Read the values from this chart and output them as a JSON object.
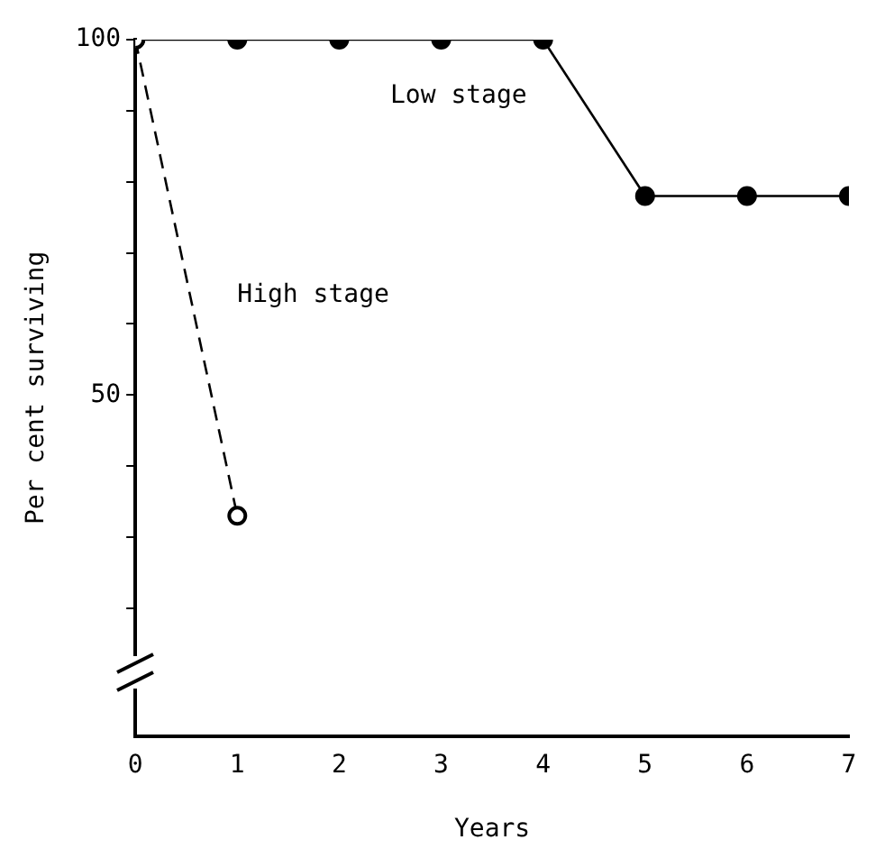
{
  "chart_data": {
    "type": "line",
    "xlabel": "Years",
    "ylabel": "Per cent surviving",
    "xlim": [
      0,
      7
    ],
    "xticks": [
      0,
      1,
      2,
      3,
      4,
      5,
      6,
      7
    ],
    "ylim": [
      2,
      100
    ],
    "yticks": [
      {
        "value": 20,
        "label": null
      },
      {
        "value": 30,
        "label": null
      },
      {
        "value": 40,
        "label": null
      },
      50,
      {
        "value": 60,
        "label": null
      },
      {
        "value": 70,
        "label": null
      },
      {
        "value": 80,
        "label": null
      },
      {
        "value": 90,
        "label": null
      },
      100
    ],
    "grid": false,
    "legend": false,
    "marker": "circle",
    "series": [
      {
        "name": "Low stage",
        "color": "#000000",
        "x": [
          0,
          1,
          2,
          3,
          4,
          5,
          6,
          7
        ],
        "values": [
          100,
          100,
          100,
          100,
          100,
          78,
          78,
          78
        ],
        "line_style": "solid"
      },
      {
        "name": "High stage",
        "color": "#000000",
        "x": [
          0,
          1
        ],
        "values": [
          100,
          33
        ],
        "line_style": "dashed"
      }
    ]
  }
}
